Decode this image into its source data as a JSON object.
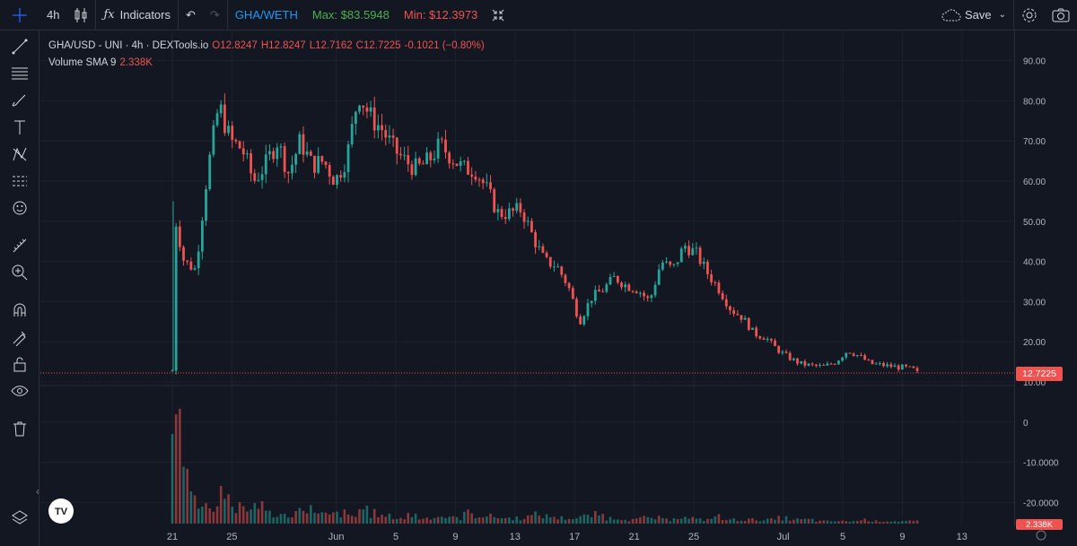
{
  "toolbar": {
    "interval": "4h",
    "indicators_label": "Indicators",
    "pair_label": "GHA/WETH",
    "max_label": "Max: $83.5948",
    "min_label": "Min: $12.3973",
    "save_label": "Save"
  },
  "legend": {
    "symbol": "GHA/USD - UNI · 4h · DEXTools.io",
    "open": "O12.8247",
    "high": "H12.8247",
    "low": "L12.7162",
    "close": "C12.7225",
    "change": "-0.1021 (−0.80%)",
    "volume_label": "Volume SMA 9",
    "volume_value": "2.338K"
  },
  "last_price_tag": "12.7225",
  "volume_tag": "2.338K",
  "colors": {
    "up": "#26a69a",
    "down": "#ef5350",
    "bg": "#131722",
    "grid": "#1e222d",
    "text": "#d1d4dc",
    "pair": "#2196f3",
    "max": "#4caf50",
    "min": "#ef5350"
  },
  "icons": [
    "crosshair-icon",
    "trendline-icon",
    "fib-icon",
    "brush-icon",
    "text-icon",
    "pattern-icon",
    "prediction-icon",
    "emoji-icon",
    "ruler-icon",
    "zoom-icon",
    "magnet-icon",
    "lock-drawing-icon",
    "lock-icon",
    "eye-icon",
    "trash-icon",
    "layers-icon"
  ],
  "chart_data": {
    "type": "candlestick",
    "y_ticks": [
      "90.00",
      "80.00",
      "70.00",
      "60.00",
      "50.00",
      "40.00",
      "30.00",
      "20.00",
      "10.00",
      "0",
      "-10.0000",
      "-20.0000"
    ],
    "x_ticks": [
      "21",
      "25",
      "Jun",
      "5",
      "9",
      "13",
      "17",
      "21",
      "25",
      "Jul",
      "5",
      "9",
      "13"
    ],
    "ylim": [
      -25,
      95
    ],
    "anchors": [
      [
        0,
        12.8
      ],
      [
        0.3,
        50
      ],
      [
        1,
        40
      ],
      [
        2,
        38
      ],
      [
        3,
        62
      ],
      [
        4,
        79
      ],
      [
        5,
        70
      ],
      [
        6,
        68
      ],
      [
        7,
        60
      ],
      [
        8,
        64
      ],
      [
        9,
        70
      ],
      [
        10,
        62
      ],
      [
        11,
        70
      ],
      [
        12,
        64
      ],
      [
        13,
        65
      ],
      [
        14,
        60
      ],
      [
        15,
        66
      ],
      [
        16,
        82
      ],
      [
        17,
        76
      ],
      [
        18,
        73
      ],
      [
        19,
        68
      ],
      [
        20,
        65
      ],
      [
        21,
        63
      ],
      [
        22,
        65
      ],
      [
        23,
        69
      ],
      [
        24,
        66
      ],
      [
        25,
        63
      ],
      [
        26,
        63
      ],
      [
        27,
        58
      ],
      [
        28,
        52
      ],
      [
        29,
        52
      ],
      [
        30,
        53
      ],
      [
        31,
        46
      ],
      [
        32,
        40
      ],
      [
        33,
        39
      ],
      [
        34,
        34
      ],
      [
        35,
        25
      ],
      [
        36,
        31
      ],
      [
        37,
        33
      ],
      [
        38,
        36
      ],
      [
        39,
        34
      ],
      [
        40,
        33
      ],
      [
        41,
        30
      ],
      [
        42,
        40
      ],
      [
        43,
        38
      ],
      [
        44,
        44
      ],
      [
        45,
        42
      ],
      [
        46,
        37
      ],
      [
        47,
        33
      ],
      [
        48,
        28
      ],
      [
        49,
        26
      ],
      [
        50,
        22
      ],
      [
        51,
        21
      ],
      [
        52,
        18
      ],
      [
        53,
        16
      ],
      [
        54,
        14.5
      ],
      [
        55,
        14
      ],
      [
        56,
        13.8
      ],
      [
        57,
        15
      ],
      [
        58,
        17.8
      ],
      [
        59,
        16.5
      ],
      [
        60,
        14.5
      ],
      [
        61,
        14.2
      ],
      [
        62,
        13.8
      ],
      [
        63,
        13.5
      ],
      [
        64,
        12.8
      ]
    ],
    "x_start": "2021-05-21",
    "x_end": "2021-07-07",
    "volume": {
      "peak_label": "",
      "values": [
        60,
        30,
        10,
        12,
        22,
        9,
        8,
        14,
        6,
        5,
        7,
        10,
        5,
        5,
        6,
        4,
        9,
        6,
        4,
        3,
        5,
        3,
        4,
        4,
        3,
        6,
        5,
        4,
        3,
        3,
        4,
        5,
        4,
        3,
        3,
        4,
        5,
        3,
        3,
        2,
        3,
        3,
        2,
        4,
        3,
        2,
        4,
        2,
        2,
        2,
        2,
        2,
        3,
        2,
        2,
        1,
        1,
        1,
        1,
        2,
        1,
        1,
        1,
        1,
        1
      ]
    }
  }
}
